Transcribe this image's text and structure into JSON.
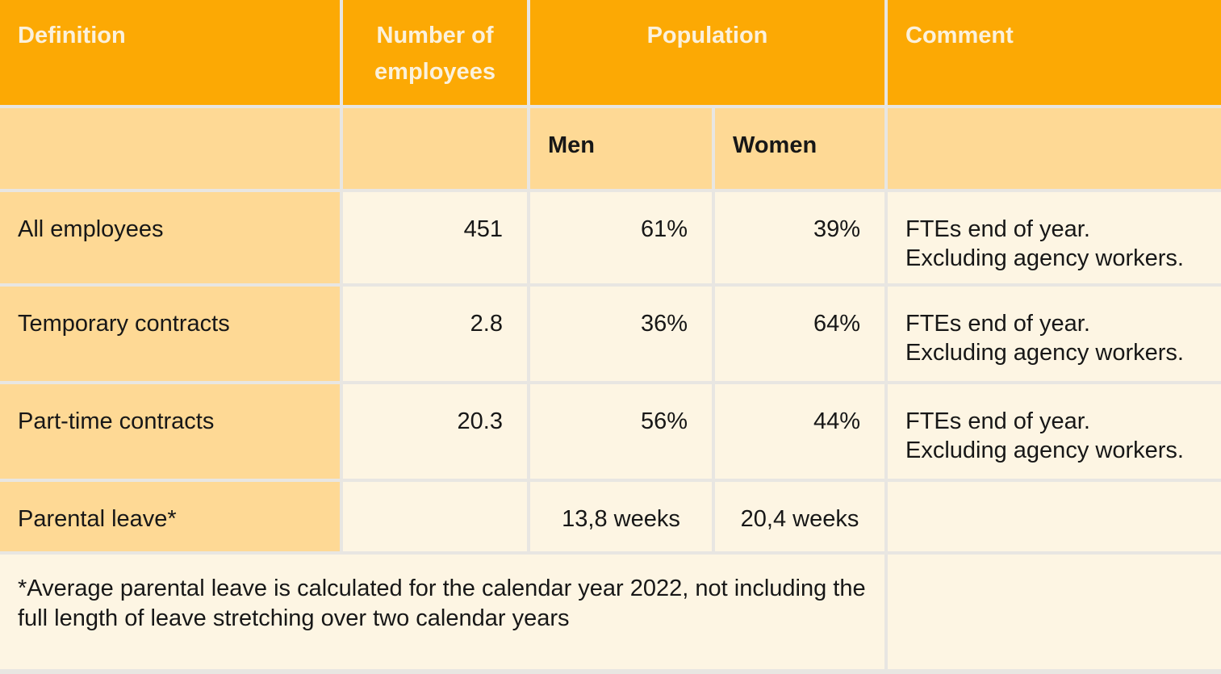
{
  "colors": {
    "header_bg": "#fca904",
    "header_text": "#fbf1dc",
    "subheader_bg": "#fed995",
    "label_column_bg": "#fed995",
    "data_cell_bg": "#fdf5e3",
    "grid_line": "#e8e6e2",
    "body_text": "#171717"
  },
  "header": {
    "definition": "Definition",
    "number_of_employees": "Number of employees",
    "population": "Population",
    "comment": "Comment",
    "men": "Men",
    "women": "Women"
  },
  "rows": [
    {
      "definition": "All employees",
      "number_of_employees": "451",
      "men": "61%",
      "women": "39%",
      "comment": [
        "FTEs end of year.",
        "Excluding agency workers."
      ]
    },
    {
      "definition": "Temporary contracts",
      "number_of_employees": "2.8",
      "men": "36%",
      "women": "64%",
      "comment": [
        "FTEs end of year.",
        "Excluding agency workers."
      ]
    },
    {
      "definition": "Part-time contracts",
      "number_of_employees": "20.3",
      "men": "56%",
      "women": "44%",
      "comment": [
        "FTEs end of year.",
        "Excluding agency workers."
      ]
    },
    {
      "definition": "Parental leave*",
      "number_of_employees": "",
      "men": "13,8 weeks",
      "women": "20,4 weeks",
      "comment": [
        "",
        ""
      ]
    }
  ],
  "footnote": "*Average parental leave is calculated for the calendar year 2022, not including the full length of leave stretching over two calendar years"
}
